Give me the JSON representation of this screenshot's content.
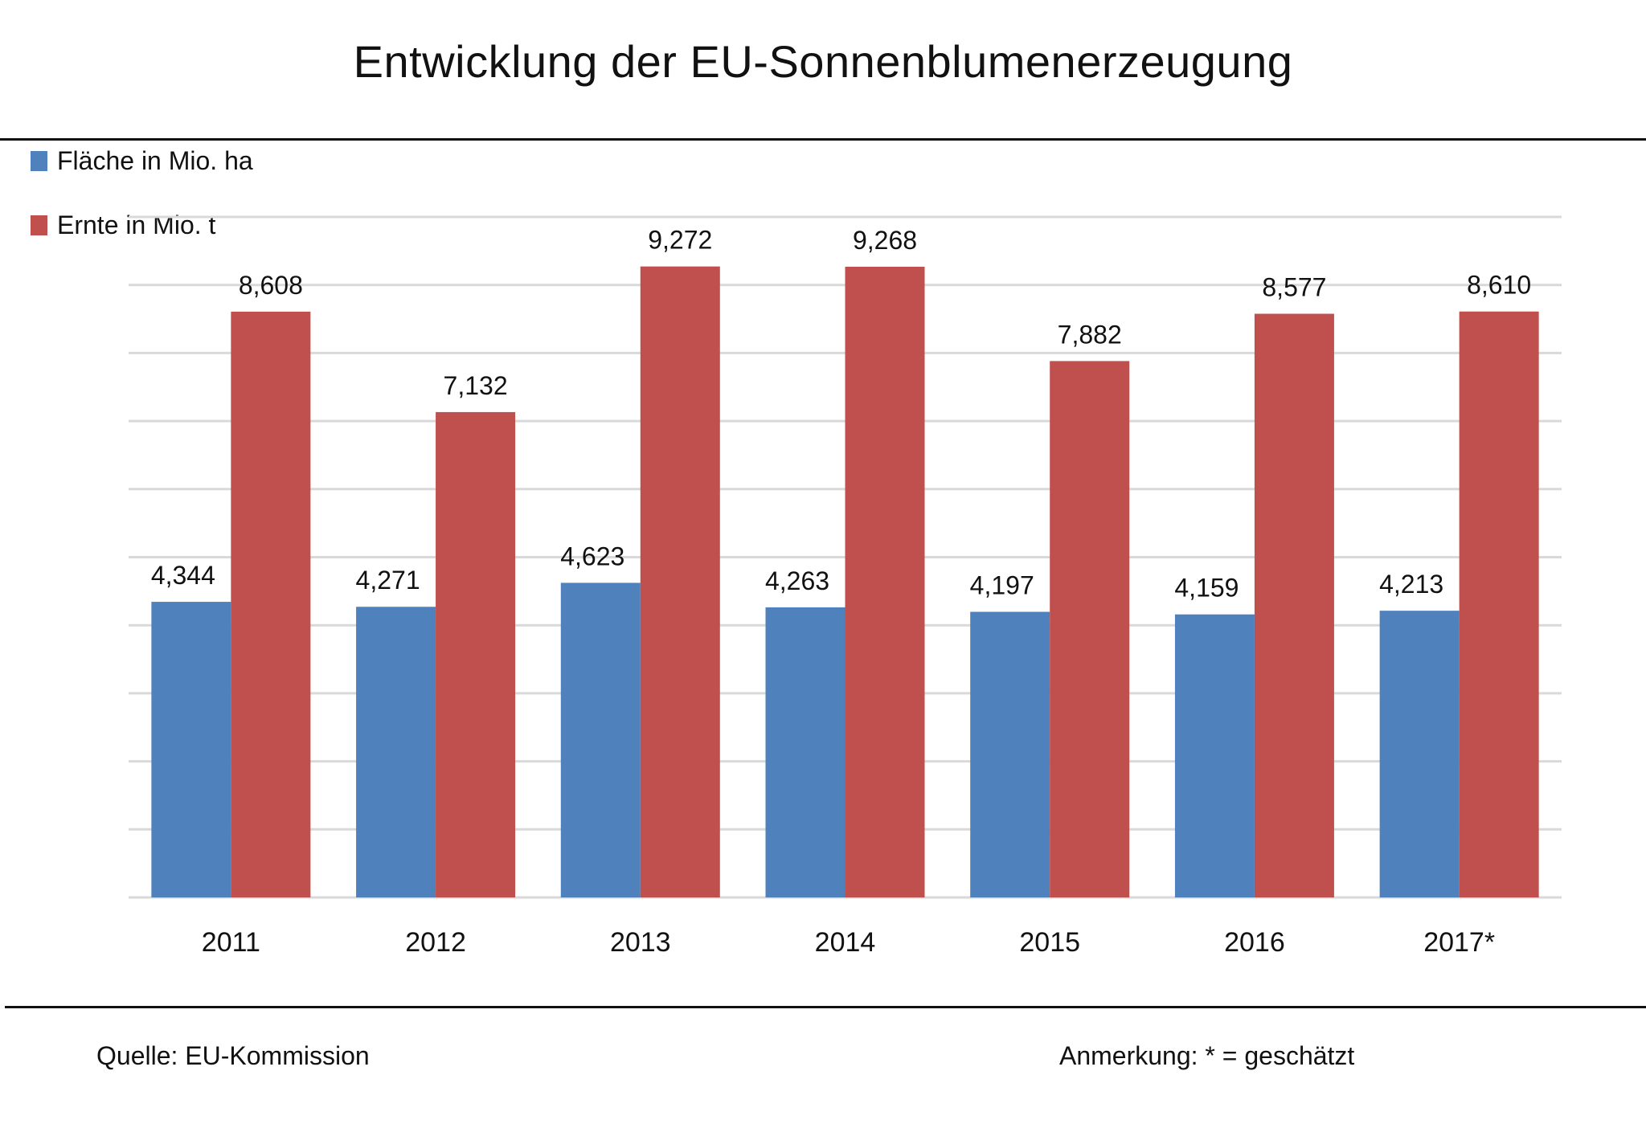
{
  "chart_data": {
    "type": "bar",
    "title": "Entwicklung der EU-Sonnenblumenerzeugung",
    "xlabel": "",
    "ylabel": "",
    "categories": [
      "2011",
      "2012",
      "2013",
      "2014",
      "2015",
      "2016",
      "2017*"
    ],
    "series": [
      {
        "name": "Fläche in Mio. ha",
        "color": "#4f81bd",
        "values": [
          4.344,
          4.271,
          4.623,
          4.263,
          4.197,
          4.159,
          4.213
        ],
        "labels": [
          "4,344",
          "4,271",
          "4,623",
          "4,263",
          "4,197",
          "4,159",
          "4,213"
        ]
      },
      {
        "name": "Ernte in Mio. t",
        "color": "#c0504d",
        "values": [
          8.608,
          7.132,
          9.272,
          9.268,
          7.882,
          8.577,
          8.61
        ],
        "labels": [
          "8,608",
          "7,132",
          "9,272",
          "9,268",
          "7,882",
          "8,577",
          "8,610"
        ]
      }
    ],
    "ylim": [
      0,
      10
    ],
    "ytick_step": 1,
    "y_tick_labels_shown": false,
    "grid": true,
    "grid_color": "#d9d9d9",
    "legend_position": "top-left"
  },
  "footer": {
    "source": "Quelle:  EU-Kommission",
    "note": "Anmerkung: * = geschätzt"
  }
}
